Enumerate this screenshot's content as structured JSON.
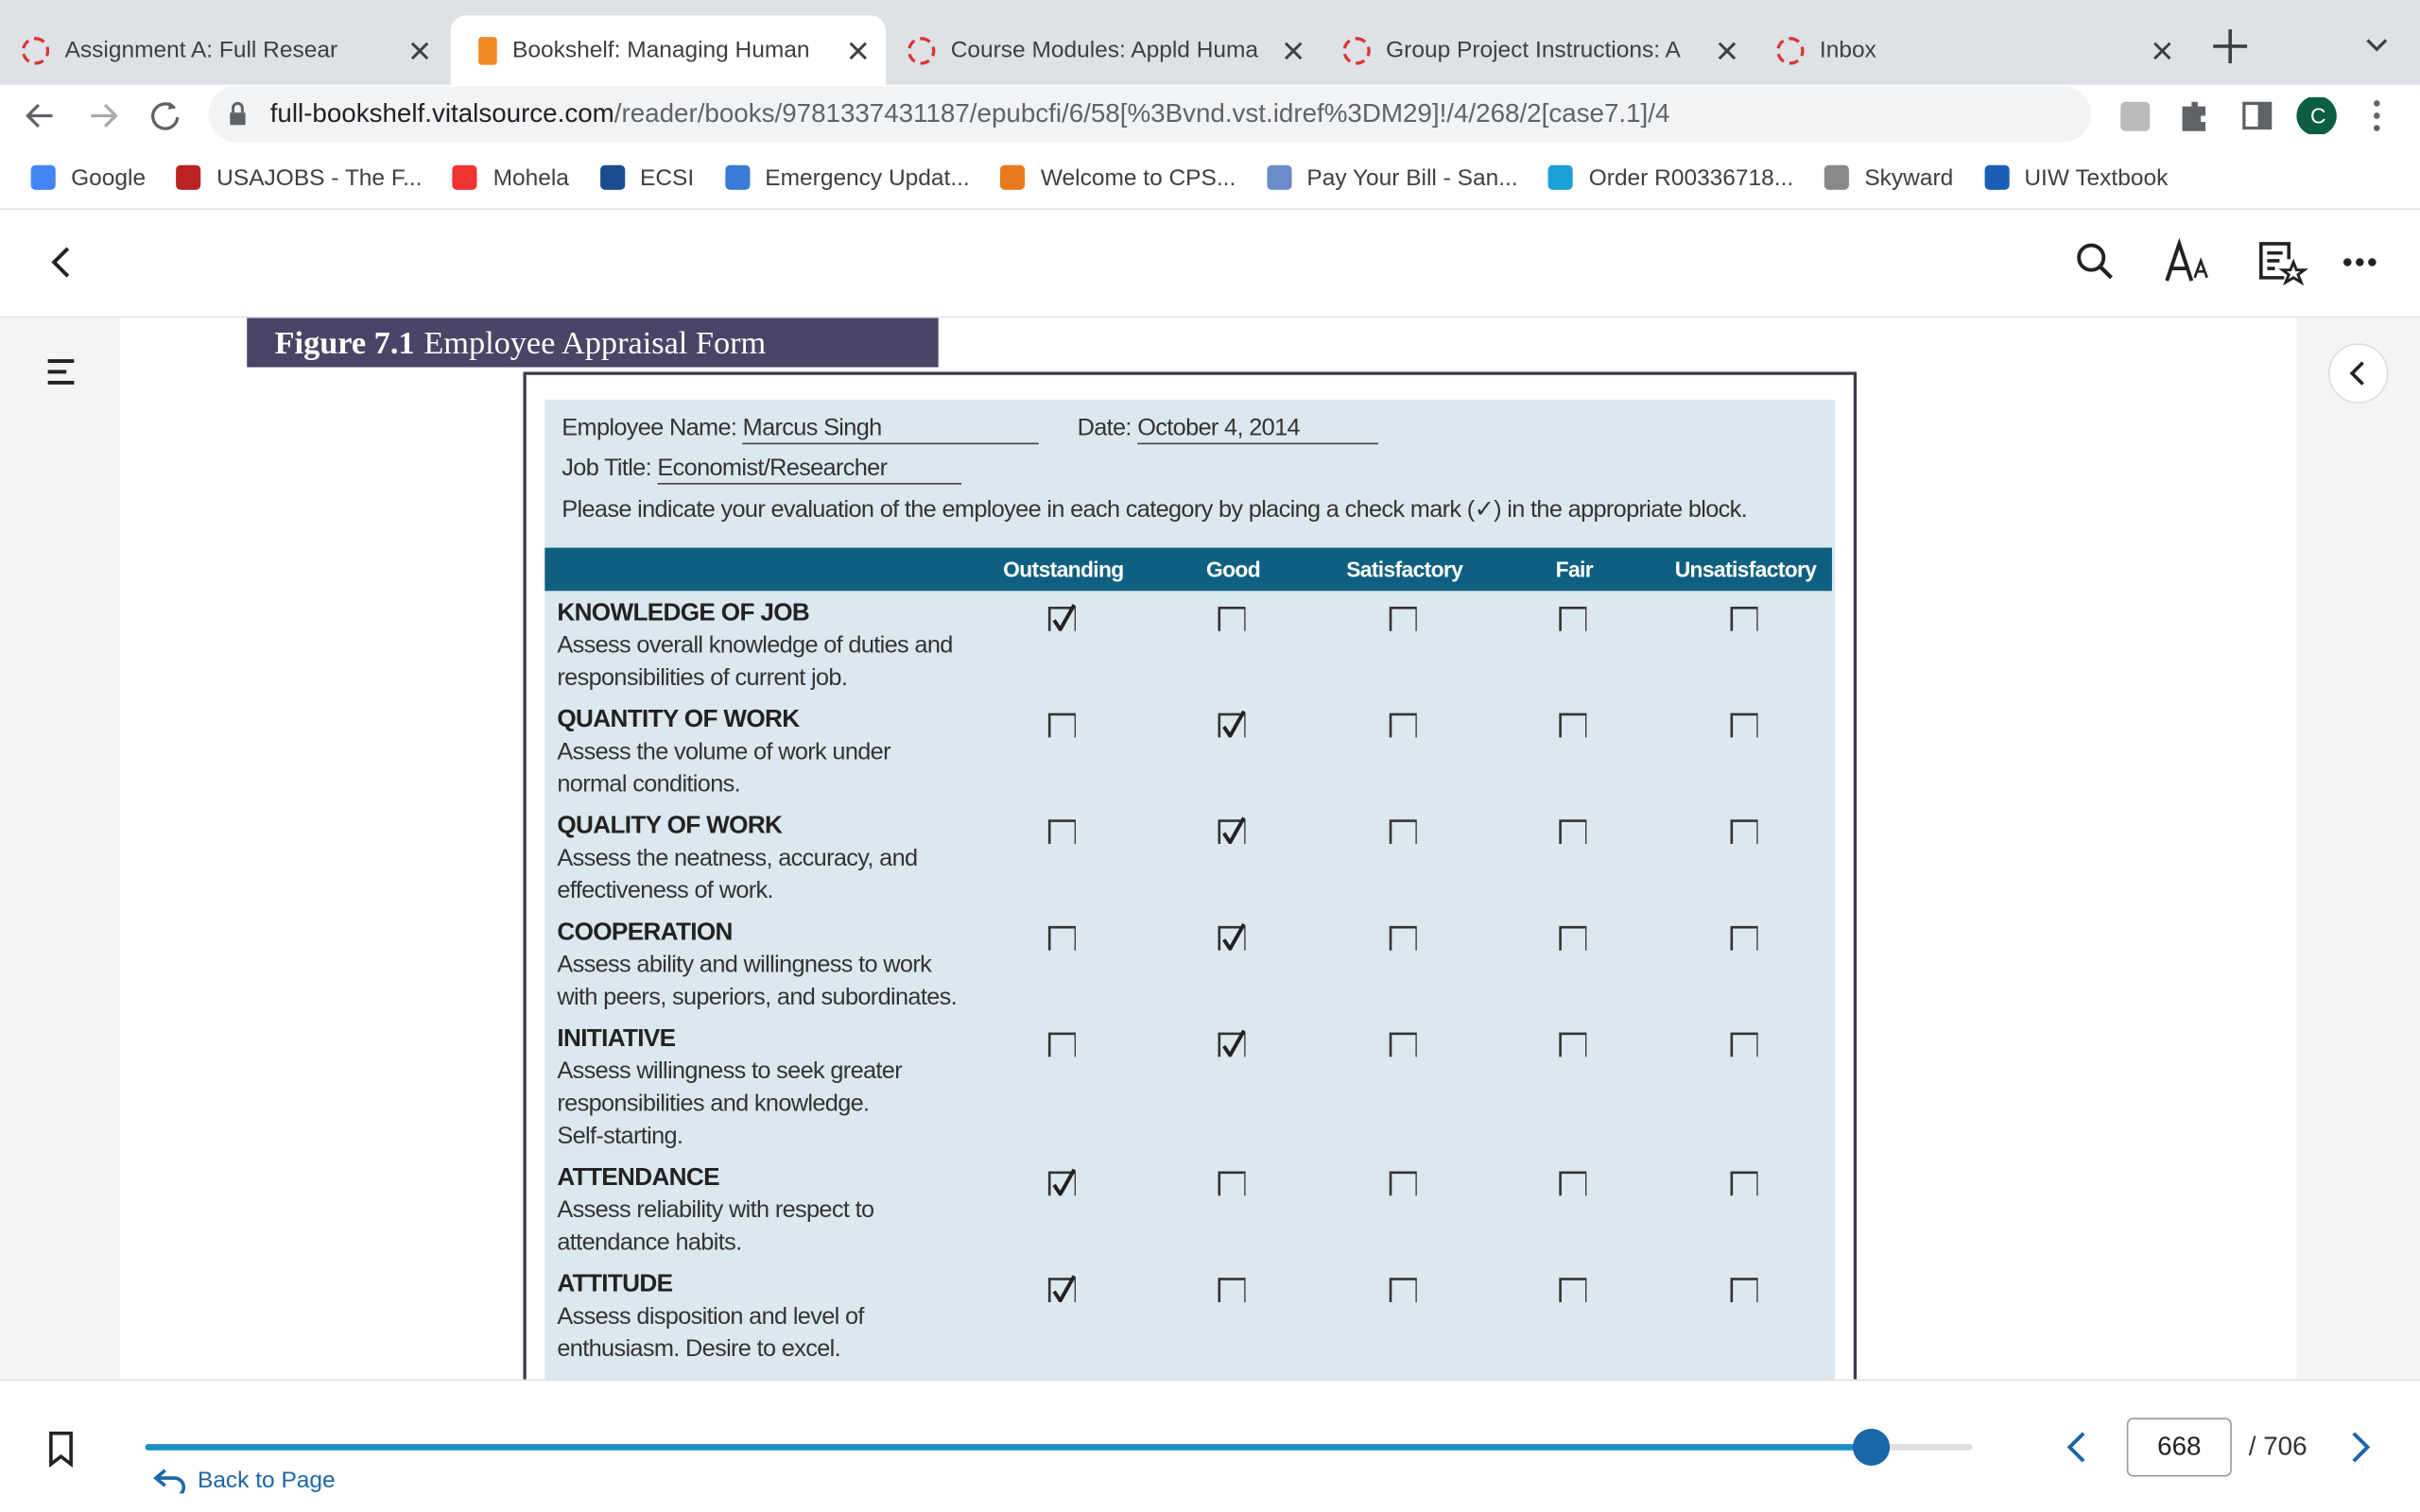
{
  "browser": {
    "tabs": [
      {
        "title": "Assignment A: Full Resear",
        "active": false
      },
      {
        "title": "Bookshelf: Managing Human",
        "active": true
      },
      {
        "title": "Course Modules: Appld Huma",
        "active": false
      },
      {
        "title": "Group Project Instructions: A",
        "active": false
      },
      {
        "title": "Inbox",
        "active": false
      }
    ],
    "url_host": "full-bookshelf.vitalsource.com",
    "url_path": "/reader/books/9781337431187/epubcfi/6/58[%3Bvnd.vst.idref%3DM29]!/4/268/2[case7.1]/4",
    "profile": "C",
    "bookmarks": [
      "Google",
      "USAJOBS - The F...",
      "Mohela",
      "ECSI",
      "Emergency Updat...",
      "Welcome to CPS...",
      "Pay Your Bill - San...",
      "Order R00336718...",
      "Skyward",
      "UIW Textbook"
    ]
  },
  "figure": {
    "label": "Figure 7.1",
    "title": "Employee Appraisal Form"
  },
  "form": {
    "name_label": "Employee Name:",
    "name": "Marcus Singh",
    "date_label": "Date:",
    "date": "October 4, 2014",
    "job_label": "Job Title:",
    "job": "Economist/Researcher",
    "instructions": "Please indicate your evaluation of the employee in each category by placing a check mark (✓) in the appropriate block.",
    "columns": [
      "Outstanding",
      "Good",
      "Satisfactory",
      "Fair",
      "Unsatisfactory"
    ],
    "rows": [
      {
        "name": "KNOWLEDGE OF JOB",
        "description": [
          "Assess overall knowledge of duties and",
          "responsibilities of current job."
        ],
        "checks": [
          true,
          false,
          false,
          false,
          false
        ]
      },
      {
        "name": "QUANTITY OF WORK",
        "description": [
          "Assess the volume of work under",
          "normal conditions."
        ],
        "checks": [
          false,
          true,
          false,
          false,
          false
        ]
      },
      {
        "name": "QUALITY OF WORK",
        "description": [
          "Assess the neatness, accuracy, and",
          "effectiveness of work."
        ],
        "checks": [
          false,
          true,
          false,
          false,
          false
        ]
      },
      {
        "name": "COOPERATION",
        "description": [
          "Assess ability and willingness to work",
          "with peers, superiors, and subordinates."
        ],
        "checks": [
          false,
          true,
          false,
          false,
          false
        ]
      },
      {
        "name": "INITIATIVE",
        "description": [
          "Assess willingness to seek greater",
          "responsibilities and knowledge.",
          "Self-starting."
        ],
        "checks": [
          false,
          true,
          false,
          false,
          false
        ]
      },
      {
        "name": "ATTENDANCE",
        "description": [
          "Assess reliability with respect to",
          "attendance habits."
        ],
        "checks": [
          true,
          false,
          false,
          false,
          false
        ]
      },
      {
        "name": "ATTITUDE",
        "description": [
          "Assess disposition and level of",
          "enthusiasm. Desire to excel."
        ],
        "checks": [
          true,
          false,
          false,
          false,
          false
        ]
      }
    ]
  },
  "footer": {
    "back": "Back to Page",
    "page": 668,
    "total": {
      "value": 706,
      "label": "/ 706"
    }
  }
}
